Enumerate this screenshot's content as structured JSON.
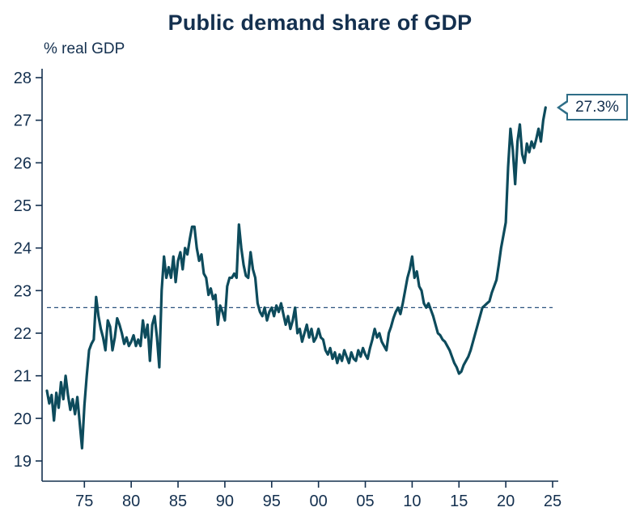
{
  "chart_data": {
    "type": "line",
    "title": "Public demand share of GDP",
    "ylabel": "% real GDP",
    "xlabel": "",
    "xlim": [
      1971,
      2025
    ],
    "ylim": [
      19,
      28
    ],
    "grid": false,
    "legend": "none",
    "yticks": {
      "values": [
        19,
        20,
        21,
        22,
        23,
        24,
        25,
        26,
        27,
        28
      ],
      "labels": [
        "19",
        "20",
        "21",
        "22",
        "23",
        "24",
        "25",
        "26",
        "27",
        "28"
      ]
    },
    "xticks": {
      "values": [
        1975,
        1980,
        1985,
        1990,
        1995,
        2000,
        2005,
        2010,
        2015,
        2020,
        2025
      ],
      "labels": [
        "75",
        "80",
        "85",
        "90",
        "95",
        "00",
        "05",
        "10",
        "15",
        "20",
        "25"
      ]
    },
    "mean_line": {
      "value": 22.6,
      "style": "dashed"
    },
    "annotation": {
      "label": "27.3%",
      "x": 2024.25,
      "y": 27.3
    },
    "colors": {
      "line": "#0d4b5c",
      "text": "#14304f",
      "axis": "#14304f",
      "mean_dash": "#2a527e",
      "callout_border": "#2f6e87"
    },
    "series": [
      {
        "name": "Public demand share of real GDP (quarterly)",
        "points": [
          [
            1971.0,
            20.65
          ],
          [
            1971.25,
            20.35
          ],
          [
            1971.5,
            20.55
          ],
          [
            1971.75,
            19.95
          ],
          [
            1972.0,
            20.6
          ],
          [
            1972.25,
            20.25
          ],
          [
            1972.5,
            20.85
          ],
          [
            1972.75,
            20.45
          ],
          [
            1973.0,
            21.0
          ],
          [
            1973.25,
            20.55
          ],
          [
            1973.5,
            20.2
          ],
          [
            1973.75,
            20.45
          ],
          [
            1974.0,
            20.1
          ],
          [
            1974.25,
            20.5
          ],
          [
            1974.5,
            19.9
          ],
          [
            1974.75,
            19.3
          ],
          [
            1975.0,
            20.3
          ],
          [
            1975.25,
            21.0
          ],
          [
            1975.5,
            21.6
          ],
          [
            1975.75,
            21.75
          ],
          [
            1976.0,
            21.85
          ],
          [
            1976.25,
            22.85
          ],
          [
            1976.5,
            22.4
          ],
          [
            1976.75,
            22.1
          ],
          [
            1977.0,
            21.9
          ],
          [
            1977.25,
            21.6
          ],
          [
            1977.5,
            22.3
          ],
          [
            1977.75,
            22.15
          ],
          [
            1978.0,
            21.6
          ],
          [
            1978.25,
            21.9
          ],
          [
            1978.5,
            22.35
          ],
          [
            1978.75,
            22.2
          ],
          [
            1979.0,
            22.0
          ],
          [
            1979.25,
            21.75
          ],
          [
            1979.5,
            21.9
          ],
          [
            1979.75,
            21.7
          ],
          [
            1980.0,
            21.8
          ],
          [
            1980.25,
            21.95
          ],
          [
            1980.5,
            21.7
          ],
          [
            1980.75,
            21.85
          ],
          [
            1981.0,
            21.7
          ],
          [
            1981.25,
            22.3
          ],
          [
            1981.5,
            21.9
          ],
          [
            1981.75,
            22.2
          ],
          [
            1982.0,
            21.35
          ],
          [
            1982.25,
            22.2
          ],
          [
            1982.5,
            22.4
          ],
          [
            1982.75,
            21.9
          ],
          [
            1983.0,
            21.2
          ],
          [
            1983.25,
            23.0
          ],
          [
            1983.5,
            23.8
          ],
          [
            1983.75,
            23.3
          ],
          [
            1984.0,
            23.55
          ],
          [
            1984.25,
            23.3
          ],
          [
            1984.5,
            23.8
          ],
          [
            1984.75,
            23.2
          ],
          [
            1985.0,
            23.7
          ],
          [
            1985.25,
            23.9
          ],
          [
            1985.5,
            23.5
          ],
          [
            1985.75,
            24.0
          ],
          [
            1986.0,
            23.85
          ],
          [
            1986.25,
            24.2
          ],
          [
            1986.5,
            24.5
          ],
          [
            1986.75,
            24.5
          ],
          [
            1987.0,
            24.0
          ],
          [
            1987.25,
            23.7
          ],
          [
            1987.5,
            23.85
          ],
          [
            1987.75,
            23.4
          ],
          [
            1988.0,
            23.3
          ],
          [
            1988.25,
            22.9
          ],
          [
            1988.5,
            23.05
          ],
          [
            1988.75,
            22.8
          ],
          [
            1989.0,
            22.9
          ],
          [
            1989.25,
            22.2
          ],
          [
            1989.5,
            22.65
          ],
          [
            1989.75,
            22.5
          ],
          [
            1990.0,
            22.3
          ],
          [
            1990.25,
            23.1
          ],
          [
            1990.5,
            23.3
          ],
          [
            1990.75,
            23.3
          ],
          [
            1991.0,
            23.4
          ],
          [
            1991.25,
            23.3
          ],
          [
            1991.5,
            24.55
          ],
          [
            1991.75,
            24.0
          ],
          [
            1992.0,
            23.6
          ],
          [
            1992.25,
            23.35
          ],
          [
            1992.5,
            23.3
          ],
          [
            1992.75,
            23.9
          ],
          [
            1993.0,
            23.5
          ],
          [
            1993.25,
            23.3
          ],
          [
            1993.5,
            22.7
          ],
          [
            1993.75,
            22.5
          ],
          [
            1994.0,
            22.4
          ],
          [
            1994.25,
            22.6
          ],
          [
            1994.5,
            22.3
          ],
          [
            1994.75,
            22.5
          ],
          [
            1995.0,
            22.6
          ],
          [
            1995.25,
            22.4
          ],
          [
            1995.5,
            22.65
          ],
          [
            1995.75,
            22.5
          ],
          [
            1996.0,
            22.7
          ],
          [
            1996.25,
            22.45
          ],
          [
            1996.5,
            22.2
          ],
          [
            1996.75,
            22.4
          ],
          [
            1997.0,
            22.1
          ],
          [
            1997.25,
            22.3
          ],
          [
            1997.5,
            22.6
          ],
          [
            1997.75,
            22.0
          ],
          [
            1998.0,
            22.1
          ],
          [
            1998.25,
            21.8
          ],
          [
            1998.5,
            22.0
          ],
          [
            1998.75,
            22.2
          ],
          [
            1999.0,
            21.9
          ],
          [
            1999.25,
            22.1
          ],
          [
            1999.5,
            21.8
          ],
          [
            1999.75,
            21.9
          ],
          [
            2000.0,
            22.1
          ],
          [
            2000.25,
            21.9
          ],
          [
            2000.5,
            21.85
          ],
          [
            2000.75,
            21.6
          ],
          [
            2001.0,
            21.5
          ],
          [
            2001.25,
            21.65
          ],
          [
            2001.5,
            21.4
          ],
          [
            2001.75,
            21.55
          ],
          [
            2002.0,
            21.3
          ],
          [
            2002.25,
            21.5
          ],
          [
            2002.5,
            21.35
          ],
          [
            2002.75,
            21.6
          ],
          [
            2003.0,
            21.45
          ],
          [
            2003.25,
            21.3
          ],
          [
            2003.5,
            21.55
          ],
          [
            2003.75,
            21.4
          ],
          [
            2004.0,
            21.35
          ],
          [
            2004.25,
            21.6
          ],
          [
            2004.5,
            21.45
          ],
          [
            2004.75,
            21.65
          ],
          [
            2005.0,
            21.5
          ],
          [
            2005.25,
            21.4
          ],
          [
            2005.5,
            21.65
          ],
          [
            2005.75,
            21.85
          ],
          [
            2006.0,
            22.1
          ],
          [
            2006.25,
            21.9
          ],
          [
            2006.5,
            22.0
          ],
          [
            2006.75,
            21.8
          ],
          [
            2007.0,
            21.7
          ],
          [
            2007.25,
            21.6
          ],
          [
            2007.5,
            22.0
          ],
          [
            2007.75,
            22.15
          ],
          [
            2008.0,
            22.35
          ],
          [
            2008.25,
            22.5
          ],
          [
            2008.5,
            22.6
          ],
          [
            2008.75,
            22.45
          ],
          [
            2009.0,
            22.7
          ],
          [
            2009.25,
            23.0
          ],
          [
            2009.5,
            23.3
          ],
          [
            2009.75,
            23.5
          ],
          [
            2010.0,
            23.8
          ],
          [
            2010.25,
            23.3
          ],
          [
            2010.5,
            23.45
          ],
          [
            2010.75,
            23.1
          ],
          [
            2011.0,
            23.0
          ],
          [
            2011.25,
            22.7
          ],
          [
            2011.5,
            22.6
          ],
          [
            2011.75,
            22.7
          ],
          [
            2012.0,
            22.55
          ],
          [
            2012.25,
            22.4
          ],
          [
            2012.5,
            22.2
          ],
          [
            2012.75,
            22.0
          ],
          [
            2013.0,
            21.95
          ],
          [
            2013.25,
            21.85
          ],
          [
            2013.5,
            21.8
          ],
          [
            2013.75,
            21.7
          ],
          [
            2014.0,
            21.6
          ],
          [
            2014.25,
            21.45
          ],
          [
            2014.5,
            21.3
          ],
          [
            2014.75,
            21.2
          ],
          [
            2015.0,
            21.05
          ],
          [
            2015.25,
            21.1
          ],
          [
            2015.5,
            21.25
          ],
          [
            2015.75,
            21.35
          ],
          [
            2016.0,
            21.45
          ],
          [
            2016.25,
            21.6
          ],
          [
            2016.5,
            21.8
          ],
          [
            2016.75,
            22.0
          ],
          [
            2017.0,
            22.2
          ],
          [
            2017.25,
            22.4
          ],
          [
            2017.5,
            22.6
          ],
          [
            2017.75,
            22.65
          ],
          [
            2018.0,
            22.7
          ],
          [
            2018.25,
            22.75
          ],
          [
            2018.5,
            22.95
          ],
          [
            2018.75,
            23.1
          ],
          [
            2019.0,
            23.25
          ],
          [
            2019.25,
            23.6
          ],
          [
            2019.5,
            24.0
          ],
          [
            2019.75,
            24.3
          ],
          [
            2020.0,
            24.6
          ],
          [
            2020.25,
            25.9
          ],
          [
            2020.5,
            26.8
          ],
          [
            2020.75,
            26.3
          ],
          [
            2021.0,
            25.5
          ],
          [
            2021.25,
            26.5
          ],
          [
            2021.5,
            26.9
          ],
          [
            2021.75,
            26.2
          ],
          [
            2022.0,
            26.0
          ],
          [
            2022.25,
            26.45
          ],
          [
            2022.5,
            26.25
          ],
          [
            2022.75,
            26.5
          ],
          [
            2023.0,
            26.35
          ],
          [
            2023.25,
            26.55
          ],
          [
            2023.5,
            26.8
          ],
          [
            2023.75,
            26.5
          ],
          [
            2024.0,
            27.0
          ],
          [
            2024.25,
            27.3
          ]
        ]
      }
    ]
  }
}
